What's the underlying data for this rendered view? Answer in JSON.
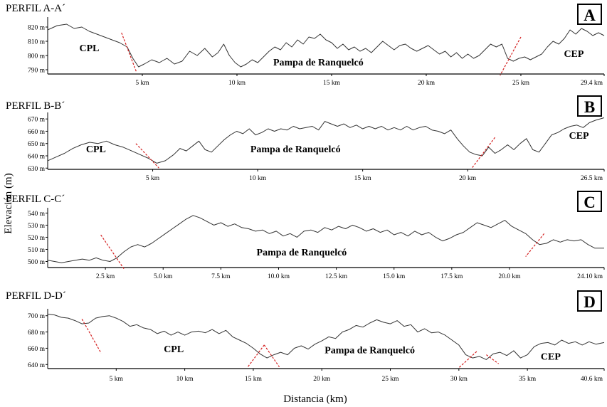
{
  "figure": {
    "ylabel": "Elevación (m)",
    "xlabel": "Distancia (km)"
  },
  "chart_data": [
    {
      "type": "line",
      "title": "PERFIL A-A´",
      "panel_letter": "A",
      "x_unit": "km",
      "xlim": [
        0,
        29.4
      ],
      "ylim": [
        787,
        825
      ],
      "x_ticks": [
        "5 km",
        "10 km",
        "15 km",
        "20 km",
        "25 km",
        "29.4 km"
      ],
      "x_tick_values": [
        5,
        10,
        15,
        20,
        25,
        29.4
      ],
      "y_ticks": [
        "820 m",
        "810 m",
        "800 m",
        "790 m"
      ],
      "y_tick_values": [
        820,
        810,
        800,
        790
      ],
      "labels": [
        {
          "text": "CPL",
          "x": 2.2,
          "y": 803
        },
        {
          "text": "Pampa de Ranquelcó",
          "x": 14.3,
          "y": 793
        },
        {
          "text": "CEP",
          "x": 27.8,
          "y": 799
        }
      ],
      "boundaries": [
        {
          "x1": 3.9,
          "y1": 816,
          "x2": 4.7,
          "y2": 788
        },
        {
          "x1": 25.0,
          "y1": 813,
          "x2": 23.9,
          "y2": 786
        }
      ],
      "series": [
        {
          "x": [
            0,
            0.5,
            1.0,
            1.4,
            1.8,
            2.2,
            2.6,
            3.0,
            3.4,
            3.8,
            4.2,
            4.5,
            4.8,
            5.1,
            5.5,
            5.9,
            6.3,
            6.7,
            7.1,
            7.5,
            7.9,
            8.3,
            8.7,
            9.0,
            9.3,
            9.6,
            9.9,
            10.2,
            10.5,
            10.8,
            11.1,
            11.4,
            11.7,
            12.0,
            12.3,
            12.6,
            12.9,
            13.2,
            13.5,
            13.8,
            14.1,
            14.4,
            14.7,
            15.0,
            15.3,
            15.6,
            15.9,
            16.2,
            16.5,
            16.8,
            17.1,
            17.4,
            17.7,
            18.0,
            18.3,
            18.6,
            18.9,
            19.2,
            19.5,
            19.8,
            20.1,
            20.4,
            20.7,
            21.0,
            21.3,
            21.6,
            21.9,
            22.2,
            22.5,
            22.8,
            23.1,
            23.4,
            23.7,
            24.0,
            24.3,
            24.6,
            24.9,
            25.2,
            25.5,
            25.8,
            26.1,
            26.4,
            26.7,
            27.0,
            27.3,
            27.6,
            27.9,
            28.2,
            28.5,
            28.8,
            29.1,
            29.4
          ],
          "y": [
            818,
            821,
            822,
            819,
            820,
            817,
            815,
            813,
            811,
            809,
            806,
            798,
            792,
            794,
            797,
            795,
            798,
            794,
            796,
            803,
            800,
            805,
            799,
            802,
            808,
            800,
            795,
            792,
            794,
            797,
            795,
            799,
            803,
            806,
            804,
            809,
            806,
            811,
            808,
            813,
            812,
            815,
            811,
            809,
            805,
            808,
            804,
            806,
            803,
            805,
            802,
            806,
            810,
            807,
            804,
            807,
            808,
            805,
            803,
            805,
            807,
            804,
            801,
            803,
            799,
            802,
            798,
            801,
            798,
            800,
            804,
            808,
            806,
            808,
            798,
            796,
            798,
            799,
            797,
            799,
            801,
            806,
            810,
            808,
            812,
            818,
            815,
            819,
            817,
            814,
            816,
            814
          ]
        }
      ]
    },
    {
      "type": "line",
      "title": "PERFIL B-B´",
      "panel_letter": "B",
      "x_unit": "km",
      "xlim": [
        0,
        26.5
      ],
      "ylim": [
        629,
        673
      ],
      "x_ticks": [
        "5 km",
        "10 km",
        "15 km",
        "20 km",
        "26.5 km"
      ],
      "x_tick_values": [
        5,
        10,
        15,
        20,
        26.5
      ],
      "y_ticks": [
        "670 m",
        "660 m",
        "650 m",
        "640 m",
        "630 m"
      ],
      "y_tick_values": [
        670,
        660,
        650,
        640,
        630
      ],
      "labels": [
        {
          "text": "CPL",
          "x": 2.3,
          "y": 643
        },
        {
          "text": "Pampa de Ranquelcó",
          "x": 11.8,
          "y": 643
        },
        {
          "text": "CEP",
          "x": 25.3,
          "y": 654
        }
      ],
      "boundaries": [
        {
          "x1": 4.2,
          "y1": 650,
          "x2": 5.3,
          "y2": 630
        },
        {
          "x1": 21.3,
          "y1": 655,
          "x2": 20.2,
          "y2": 630
        }
      ],
      "series": [
        {
          "x": [
            0,
            0.4,
            0.8,
            1.2,
            1.6,
            2.0,
            2.4,
            2.8,
            3.2,
            3.6,
            4.0,
            4.4,
            4.8,
            5.2,
            5.6,
            6.0,
            6.3,
            6.6,
            6.9,
            7.2,
            7.5,
            7.8,
            8.1,
            8.4,
            8.7,
            9.0,
            9.3,
            9.6,
            9.9,
            10.2,
            10.5,
            10.8,
            11.1,
            11.4,
            11.7,
            12.0,
            12.3,
            12.6,
            12.9,
            13.2,
            13.5,
            13.8,
            14.1,
            14.4,
            14.7,
            15.0,
            15.3,
            15.6,
            15.9,
            16.2,
            16.5,
            16.8,
            17.1,
            17.4,
            17.7,
            18.0,
            18.3,
            18.6,
            18.9,
            19.2,
            19.5,
            19.8,
            20.1,
            20.4,
            20.7,
            21.0,
            21.3,
            21.6,
            21.9,
            22.2,
            22.5,
            22.8,
            23.1,
            23.4,
            23.7,
            24.0,
            24.3,
            24.6,
            24.9,
            25.2,
            25.5,
            25.8,
            26.1,
            26.5
          ],
          "y": [
            636,
            639,
            642,
            646,
            649,
            651,
            650,
            652,
            649,
            647,
            644,
            641,
            638,
            634,
            636,
            641,
            646,
            644,
            648,
            652,
            645,
            643,
            648,
            653,
            657,
            660,
            658,
            662,
            657,
            659,
            662,
            660,
            662,
            661,
            664,
            662,
            663,
            664,
            661,
            668,
            666,
            664,
            666,
            663,
            665,
            662,
            664,
            662,
            664,
            661,
            663,
            661,
            664,
            661,
            663,
            664,
            661,
            660,
            658,
            661,
            654,
            648,
            643,
            641,
            640,
            647,
            642,
            645,
            649,
            645,
            650,
            654,
            645,
            643,
            650,
            657,
            659,
            662,
            664,
            665,
            663,
            667,
            669,
            671
          ]
        }
      ]
    },
    {
      "type": "line",
      "title": "PERFIL C-C´",
      "panel_letter": "C",
      "x_unit": "km",
      "xlim": [
        0,
        24.1
      ],
      "ylim": [
        495,
        542
      ],
      "x_ticks": [
        "2.5 km",
        "5.0 km",
        "7.5 km",
        "10.0 km",
        "12.5 km",
        "15.0 km",
        "17.5 km",
        "20.0 km",
        "24.10 km"
      ],
      "x_tick_values": [
        2.5,
        5.0,
        7.5,
        10.0,
        12.5,
        15.0,
        17.5,
        20.0,
        24.1
      ],
      "y_ticks": [
        "540 m",
        "530 m",
        "520 m",
        "510 m",
        "500 m"
      ],
      "y_tick_values": [
        540,
        530,
        520,
        510,
        500
      ],
      "labels": [
        {
          "text": "Pampa de Ranquelcó",
          "x": 11.0,
          "y": 505
        }
      ],
      "boundaries": [
        {
          "x1": 2.3,
          "y1": 522,
          "x2": 3.3,
          "y2": 494
        },
        {
          "x1": 21.5,
          "y1": 523,
          "x2": 20.7,
          "y2": 504
        }
      ],
      "series": [
        {
          "x": [
            0,
            0.3,
            0.6,
            0.9,
            1.2,
            1.5,
            1.8,
            2.1,
            2.4,
            2.7,
            3.0,
            3.3,
            3.6,
            3.9,
            4.2,
            4.5,
            4.8,
            5.1,
            5.4,
            5.7,
            6.0,
            6.3,
            6.6,
            6.9,
            7.2,
            7.5,
            7.8,
            8.1,
            8.4,
            8.7,
            9.0,
            9.3,
            9.6,
            9.9,
            10.2,
            10.5,
            10.8,
            11.1,
            11.4,
            11.7,
            12.0,
            12.3,
            12.6,
            12.9,
            13.2,
            13.5,
            13.8,
            14.1,
            14.4,
            14.7,
            15.0,
            15.3,
            15.6,
            15.9,
            16.2,
            16.5,
            16.8,
            17.1,
            17.4,
            17.7,
            18.0,
            18.3,
            18.6,
            18.9,
            19.2,
            19.5,
            19.8,
            20.1,
            20.4,
            20.7,
            21.0,
            21.3,
            21.6,
            21.9,
            22.2,
            22.5,
            22.8,
            23.1,
            23.4,
            23.7,
            24.1
          ],
          "y": [
            501,
            500,
            499,
            500,
            501,
            502,
            501,
            503,
            501,
            500,
            503,
            508,
            512,
            514,
            512,
            515,
            519,
            523,
            527,
            531,
            535,
            538,
            536,
            533,
            530,
            532,
            529,
            531,
            528,
            527,
            525,
            526,
            523,
            525,
            521,
            523,
            520,
            525,
            526,
            524,
            528,
            526,
            529,
            527,
            530,
            528,
            525,
            527,
            524,
            526,
            522,
            524,
            521,
            525,
            522,
            524,
            520,
            517,
            519,
            522,
            524,
            528,
            532,
            530,
            528,
            531,
            534,
            529,
            526,
            523,
            518,
            514,
            515,
            518,
            516,
            518,
            517,
            518,
            514,
            511,
            511
          ]
        }
      ]
    },
    {
      "type": "line",
      "title": "PERFIL D-D´",
      "panel_letter": "D",
      "x_unit": "km",
      "xlim": [
        0,
        40.6
      ],
      "ylim": [
        635,
        705
      ],
      "x_ticks": [
        "5 km",
        "10 km",
        "15 km",
        "20 km",
        "25 km",
        "30 km",
        "35 km",
        "40.6 km"
      ],
      "x_tick_values": [
        5,
        10,
        15,
        20,
        25,
        30,
        35,
        40.6
      ],
      "y_ticks": [
        "700 m",
        "680 m",
        "660 m",
        "640 m"
      ],
      "y_tick_values": [
        700,
        680,
        660,
        640
      ],
      "labels": [
        {
          "text": "CPL",
          "x": 9.2,
          "y": 655
        },
        {
          "text": "Pampa de Ranquelcó",
          "x": 23.5,
          "y": 654
        },
        {
          "text": "CEP",
          "x": 36.7,
          "y": 646
        }
      ],
      "boundaries": [
        {
          "x1": 2.5,
          "y1": 696,
          "x2": 3.9,
          "y2": 654
        },
        {
          "x1": 15.8,
          "y1": 664,
          "x2": 14.6,
          "y2": 637
        },
        {
          "x1": 15.8,
          "y1": 664,
          "x2": 16.9,
          "y2": 637
        },
        {
          "x1": 31.3,
          "y1": 656,
          "x2": 30.0,
          "y2": 636
        },
        {
          "x1": 32.0,
          "y1": 652,
          "x2": 32.9,
          "y2": 641
        }
      ],
      "series": [
        {
          "x": [
            0,
            0.5,
            1.0,
            1.5,
            2.0,
            2.5,
            3.0,
            3.5,
            4.0,
            4.5,
            5.0,
            5.5,
            6.0,
            6.5,
            7.0,
            7.5,
            8.0,
            8.5,
            9.0,
            9.5,
            10.0,
            10.5,
            11.0,
            11.5,
            12.0,
            12.5,
            13.0,
            13.5,
            14.0,
            14.5,
            15.0,
            15.5,
            16.0,
            16.5,
            17.0,
            17.5,
            18.0,
            18.5,
            19.0,
            19.5,
            20.0,
            20.5,
            21.0,
            21.5,
            22.0,
            22.5,
            23.0,
            23.5,
            24.0,
            24.5,
            25.0,
            25.5,
            26.0,
            26.5,
            27.0,
            27.5,
            28.0,
            28.5,
            29.0,
            29.5,
            30.0,
            30.5,
            31.0,
            31.5,
            32.0,
            32.5,
            33.0,
            33.5,
            34.0,
            34.5,
            35.0,
            35.5,
            36.0,
            36.5,
            37.0,
            37.5,
            38.0,
            38.5,
            39.0,
            39.5,
            40.0,
            40.6
          ],
          "y": [
            702,
            701,
            698,
            697,
            694,
            690,
            691,
            697,
            699,
            700,
            697,
            693,
            687,
            689,
            685,
            683,
            678,
            681,
            676,
            680,
            676,
            680,
            681,
            679,
            683,
            678,
            682,
            674,
            670,
            666,
            660,
            653,
            648,
            652,
            655,
            652,
            660,
            663,
            659,
            665,
            669,
            674,
            672,
            680,
            683,
            688,
            686,
            691,
            695,
            692,
            690,
            694,
            687,
            689,
            680,
            684,
            679,
            680,
            676,
            670,
            664,
            652,
            648,
            650,
            646,
            653,
            655,
            651,
            657,
            648,
            652,
            662,
            666,
            667,
            664,
            670,
            666,
            668,
            664,
            668,
            665,
            667
          ]
        }
      ]
    }
  ]
}
